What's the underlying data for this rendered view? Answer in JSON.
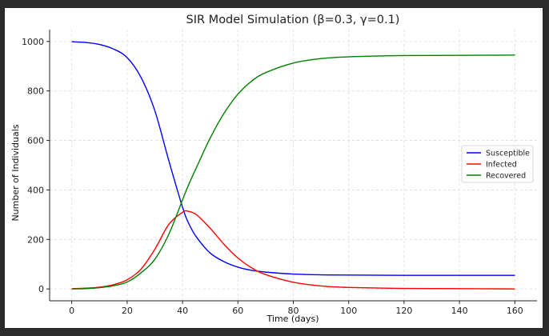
{
  "chart_data": {
    "type": "line",
    "title": "SIR Model Simulation (β=0.3, γ=0.1)",
    "xlabel": "Time (days)",
    "ylabel": "Number of Individuals",
    "xlim": [
      -8,
      168
    ],
    "ylim": [
      -48,
      1048
    ],
    "xticks": [
      0,
      20,
      40,
      60,
      80,
      100,
      120,
      140,
      160
    ],
    "yticks": [
      0,
      200,
      400,
      600,
      800,
      1000
    ],
    "grid": true,
    "legend_position": "center-right",
    "x": [
      0,
      5,
      10,
      15,
      20,
      25,
      30,
      35,
      40,
      42,
      45,
      50,
      55,
      60,
      65,
      70,
      80,
      90,
      100,
      120,
      140,
      160
    ],
    "series": [
      {
        "name": "Susceptible",
        "color": "#0000ff",
        "values": [
          999,
          996,
          988,
          970,
          935,
          855,
          720,
          520,
          330,
          270,
          210,
          145,
          110,
          88,
          75,
          68,
          60,
          57,
          56,
          55,
          55,
          55
        ]
      },
      {
        "name": "Infected",
        "color": "#ff0000",
        "values": [
          1,
          3,
          7,
          17,
          37,
          80,
          160,
          260,
          310,
          314,
          300,
          245,
          180,
          125,
          85,
          58,
          27,
          12,
          6,
          2,
          1,
          0
        ]
      },
      {
        "name": "Recovered",
        "color": "#008000",
        "values": [
          0,
          1,
          5,
          13,
          28,
          65,
          120,
          220,
          360,
          416,
          490,
          610,
          710,
          787,
          840,
          874,
          913,
          931,
          938,
          943,
          944,
          945
        ]
      }
    ]
  }
}
